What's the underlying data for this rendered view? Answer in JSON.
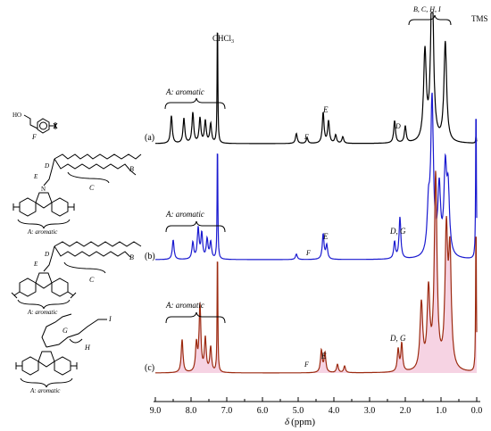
{
  "chart_data": {
    "type": "line",
    "xlabel_symbol": "δ",
    "xlabel_unit": "(ppm)",
    "xlim": [
      9.0,
      0.0
    ],
    "x_reversed": true,
    "ticks": [
      "9.0",
      "8.0",
      "7.0",
      "6.0",
      "5.0",
      "4.0",
      "3.0",
      "2.0",
      "1.0",
      "0.0"
    ],
    "grid": false,
    "colors": {
      "a": "#000000",
      "b": "#1a1ad0",
      "c": "#9c2a10",
      "c_fill": "#f4c8dc"
    },
    "series": [
      {
        "name": "(a)",
        "peaks": [
          [
            8.55,
            0.5
          ],
          [
            8.2,
            0.45
          ],
          [
            7.95,
            0.55
          ],
          [
            7.75,
            0.45
          ],
          [
            7.6,
            0.4
          ],
          [
            7.45,
            0.35
          ],
          [
            7.26,
            2.2
          ],
          [
            5.05,
            0.18
          ],
          [
            4.75,
            0.1
          ],
          [
            4.3,
            0.55
          ],
          [
            4.15,
            0.4
          ],
          [
            3.95,
            0.15
          ],
          [
            3.75,
            0.12
          ],
          [
            2.3,
            0.4
          ],
          [
            2.0,
            0.3
          ],
          [
            1.45,
            1.6
          ],
          [
            1.25,
            3.2
          ],
          [
            0.88,
            1.8
          ],
          [
            0.02,
            0.12
          ]
        ]
      },
      {
        "name": "(b)",
        "peaks": [
          [
            8.5,
            0.35
          ],
          [
            7.95,
            0.3
          ],
          [
            7.8,
            0.55
          ],
          [
            7.7,
            0.45
          ],
          [
            7.55,
            0.35
          ],
          [
            7.45,
            0.3
          ],
          [
            7.26,
            2.1
          ],
          [
            5.05,
            0.1
          ],
          [
            4.3,
            0.45
          ],
          [
            4.2,
            0.25
          ],
          [
            2.3,
            0.3
          ],
          [
            2.15,
            0.75
          ],
          [
            1.35,
            0.8
          ],
          [
            1.25,
            2.8
          ],
          [
            1.05,
            1.2
          ],
          [
            0.88,
            1.5
          ],
          [
            0.8,
            1.1
          ],
          [
            0.02,
            2.8
          ]
        ]
      },
      {
        "name": "(c)",
        "peaks": [
          [
            8.25,
            0.6
          ],
          [
            7.85,
            0.5
          ],
          [
            7.75,
            1.2
          ],
          [
            7.6,
            0.6
          ],
          [
            7.45,
            0.45
          ],
          [
            7.26,
            2.2
          ],
          [
            4.35,
            0.4
          ],
          [
            4.25,
            0.35
          ],
          [
            3.9,
            0.15
          ],
          [
            3.7,
            0.12
          ],
          [
            2.2,
            0.4
          ],
          [
            2.1,
            0.5
          ],
          [
            1.55,
            1.2
          ],
          [
            1.35,
            1.4
          ],
          [
            1.15,
            3.5
          ],
          [
            0.85,
            2.4
          ],
          [
            0.75,
            2.0
          ],
          [
            0.02,
            2.7
          ]
        ]
      }
    ],
    "annotations": {
      "chcl3": "CHCl",
      "chcl3_sub": "3",
      "tms": "TMS",
      "bchi": "B, C, H, I",
      "aromatic": "A: aromatic",
      "E": "E",
      "F": "F",
      "D": "D",
      "DG": "D, G"
    }
  },
  "structures": {
    "ho": "HO",
    "F": "F",
    "D": "D",
    "E": "E",
    "B": "B",
    "C": "C",
    "N": "N",
    "G": "G",
    "H": "H",
    "I": "I",
    "aromatic": "A: aromatic"
  }
}
